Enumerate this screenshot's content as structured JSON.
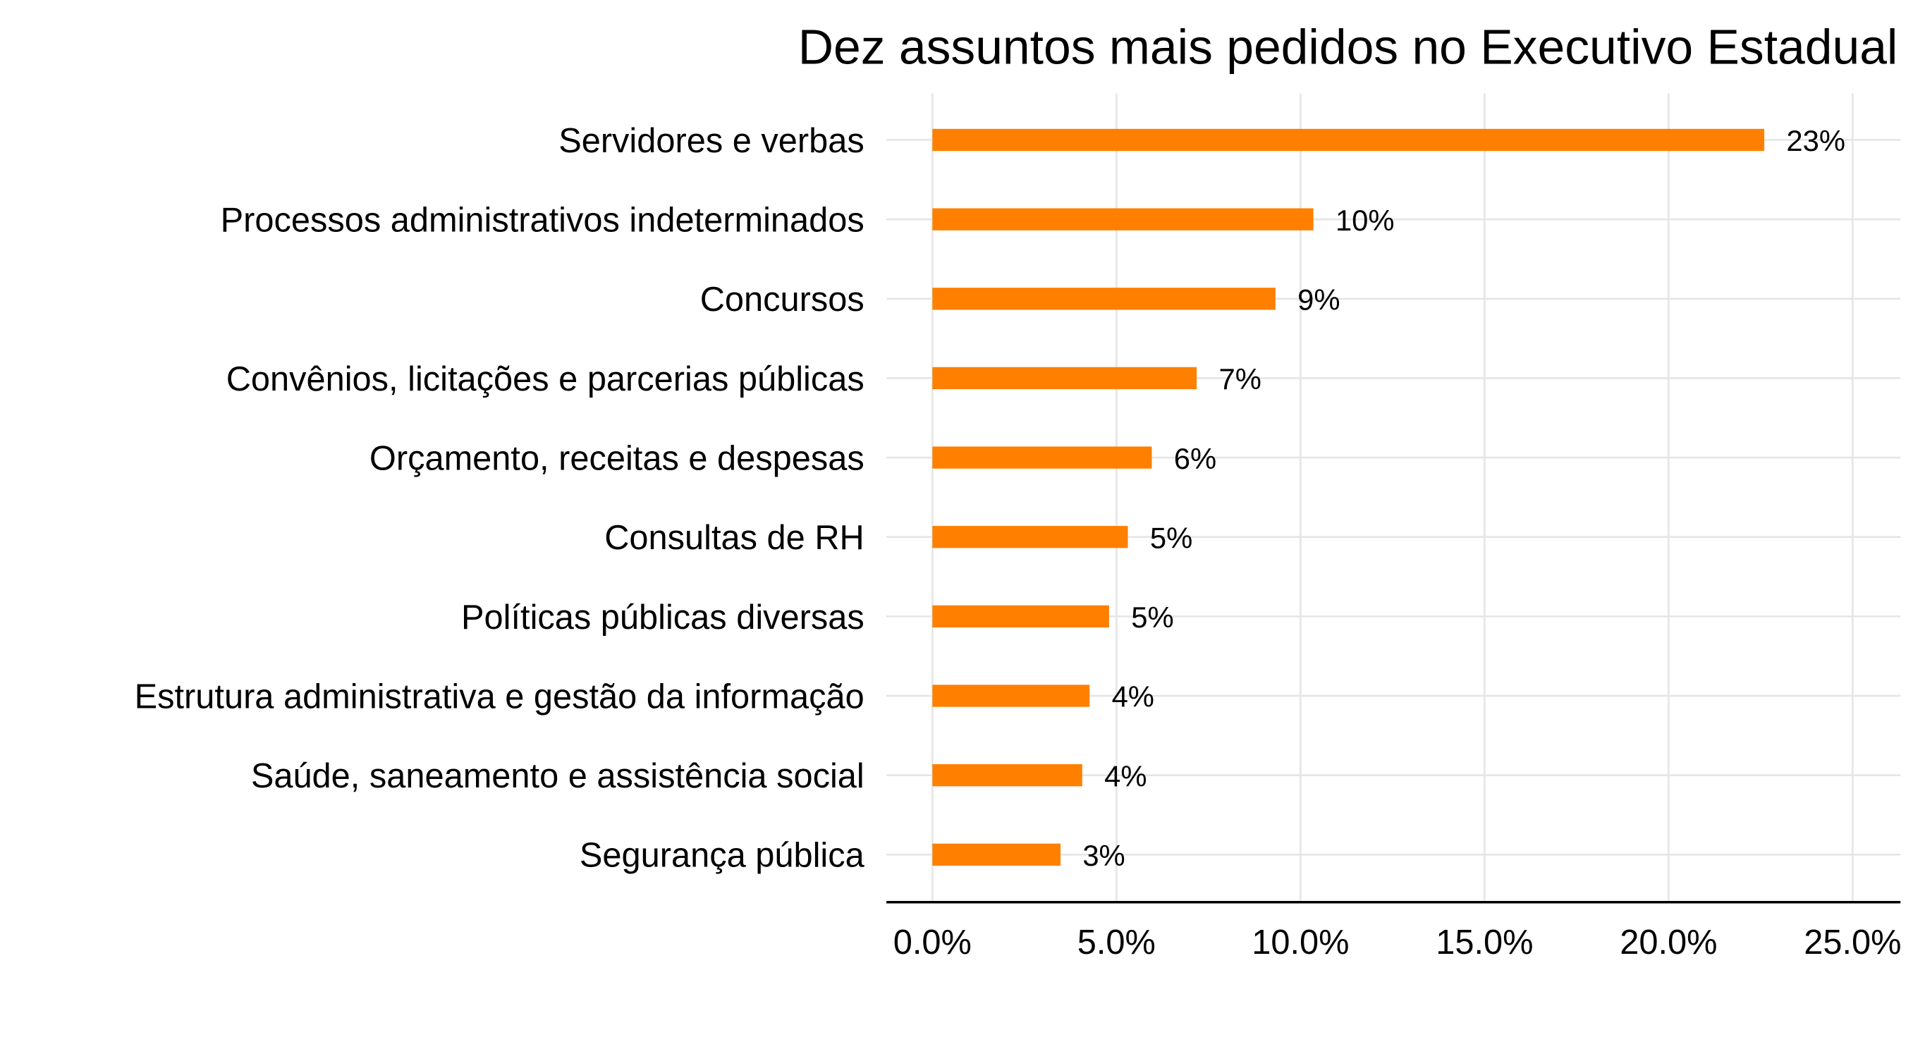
{
  "chart_data": {
    "type": "bar",
    "orientation": "horizontal",
    "title": "Dez assuntos mais pedidos no Executivo Estadual",
    "xlabel": "",
    "ylabel": "",
    "categories": [
      "Servidores e verbas",
      "Processos administrativos indeterminados",
      "Concursos",
      "Convênios, licitações e parcerias públicas",
      "Orçamento, receitas e despesas",
      "Consultas de RH",
      "Políticas públicas diversas",
      "Estrutura administrativa e gestão da informação",
      "Saúde, saneamento e assistência social",
      "Segurança pública"
    ],
    "values": [
      22.6,
      10.35,
      9.32,
      7.18,
      5.96,
      5.31,
      4.8,
      4.27,
      4.07,
      3.48
    ],
    "data_labels": [
      "23%",
      "10%",
      "9%",
      "7%",
      "6%",
      "5%",
      "5%",
      "4%",
      "4%",
      "3%"
    ],
    "xticks": [
      0,
      5,
      10,
      15,
      20,
      25
    ],
    "xtick_labels": [
      "0.0%",
      "5.0%",
      "10.0%",
      "15.0%",
      "20.0%",
      "25.0%"
    ],
    "xlim": [
      -1.25,
      26.3
    ],
    "grid": true,
    "legend": "none",
    "colors": {
      "bar": "#FF7F00",
      "grid": "#E5E5E5",
      "axis": "#000000"
    }
  }
}
